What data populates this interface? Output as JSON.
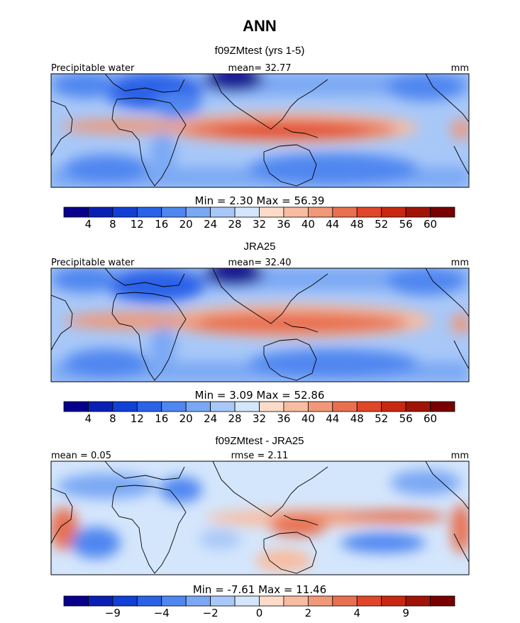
{
  "figure": {
    "title": "ANN",
    "panels": [
      {
        "id": "model",
        "subtitle": "f09ZMtest (yrs 1-5)",
        "left_label": "Precipitable water",
        "center_label": "mean=   32.77",
        "right_label": "mm",
        "minmax_label": "Min =     2.30  Max =    56.39",
        "colorbar": {
          "colors": [
            "#08008c",
            "#0a20b4",
            "#1240d4",
            "#2a62e8",
            "#4f86f0",
            "#7aa8f4",
            "#a8c8f8",
            "#d4e6fc",
            "#fcdcc8",
            "#f8bca0",
            "#f09878",
            "#e87050",
            "#e04628",
            "#c82810",
            "#a01408",
            "#780000"
          ],
          "tick_labels": [
            "4",
            "8",
            "12",
            "16",
            "20",
            "24",
            "28",
            "32",
            "36",
            "40",
            "44",
            "48",
            "52",
            "56",
            "60"
          ]
        }
      },
      {
        "id": "obs",
        "subtitle": "JRA25",
        "left_label": "Precipitable water",
        "center_label": "mean=   32.40",
        "right_label": "mm",
        "minmax_label": "Min =     3.09  Max =    52.86",
        "colorbar": {
          "colors": [
            "#08008c",
            "#0a20b4",
            "#1240d4",
            "#2a62e8",
            "#4f86f0",
            "#7aa8f4",
            "#a8c8f8",
            "#d4e6fc",
            "#fcdcc8",
            "#f8bca0",
            "#f09878",
            "#e87050",
            "#e04628",
            "#c82810",
            "#a01408",
            "#780000"
          ],
          "tick_labels": [
            "4",
            "8",
            "12",
            "16",
            "20",
            "24",
            "28",
            "32",
            "36",
            "40",
            "44",
            "48",
            "52",
            "56",
            "60"
          ]
        }
      },
      {
        "id": "diff",
        "subtitle": "f09ZMtest - JRA25",
        "left_label": "mean =     0.05",
        "center_label": "rmse =     2.11",
        "right_label": "mm",
        "minmax_label": "Min =    -7.61  Max =    11.46",
        "colorbar": {
          "colors": [
            "#08008c",
            "#0a20b4",
            "#1240d4",
            "#2a62e8",
            "#4f86f0",
            "#7aa8f4",
            "#a8c8f8",
            "#d4e6fc",
            "#fcdcc8",
            "#f8bca0",
            "#f09878",
            "#e87050",
            "#e04628",
            "#c82810",
            "#a01408",
            "#780000"
          ],
          "tick_labels": [
            "",
            "−9",
            "",
            "−4",
            "",
            "−2",
            "",
            "0",
            "",
            "2",
            "",
            "4",
            "",
            "9",
            ""
          ]
        }
      }
    ]
  },
  "chart_data": {
    "type": "heatmap",
    "title": "ANN",
    "variable": "Precipitable water",
    "units": "mm",
    "maps": [
      {
        "name": "f09ZMtest (yrs 1-5)",
        "mean": 32.77,
        "min": 2.3,
        "max": 56.39,
        "levels": [
          4,
          8,
          12,
          16,
          20,
          24,
          28,
          32,
          36,
          40,
          44,
          48,
          52,
          56,
          60
        ]
      },
      {
        "name": "JRA25",
        "mean": 32.4,
        "min": 3.09,
        "max": 52.86,
        "levels": [
          4,
          8,
          12,
          16,
          20,
          24,
          28,
          32,
          36,
          40,
          44,
          48,
          52,
          56,
          60
        ]
      },
      {
        "name": "f09ZMtest - JRA25",
        "mean": 0.05,
        "rmse": 2.11,
        "min": -7.61,
        "max": 11.46,
        "levels": [
          "",
          -9,
          "",
          -4,
          "",
          -2,
          "",
          0,
          "",
          2,
          "",
          4,
          "",
          9,
          ""
        ]
      }
    ]
  }
}
